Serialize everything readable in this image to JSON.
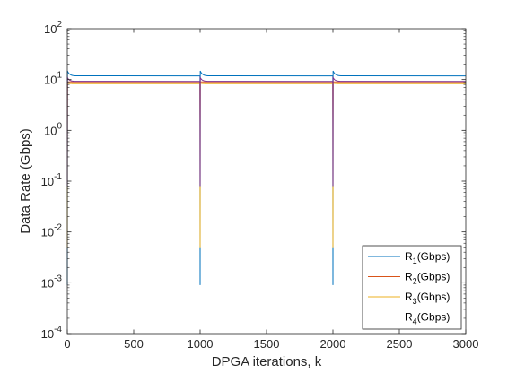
{
  "chart_data": {
    "type": "line",
    "title": "",
    "xlabel": "DPGA iterations, k",
    "ylabel": "Data Rate (Gbps)",
    "xlim": [
      0,
      3000
    ],
    "ylim": [
      0.0001,
      100
    ],
    "yscale": "log",
    "xticks": [
      0,
      500,
      1000,
      1500,
      2000,
      2500,
      3000
    ],
    "yticks": [
      {
        "value": 0.0001,
        "base": "10",
        "exp": "-4"
      },
      {
        "value": 0.001,
        "base": "10",
        "exp": "-3"
      },
      {
        "value": 0.01,
        "base": "10",
        "exp": "-2"
      },
      {
        "value": 0.1,
        "base": "10",
        "exp": "-1"
      },
      {
        "value": 1,
        "base": "10",
        "exp": "0"
      },
      {
        "value": 10,
        "base": "10",
        "exp": "1"
      },
      {
        "value": 100,
        "base": "10",
        "exp": "2"
      }
    ],
    "grid": false,
    "legend_position": "bottom-right",
    "restarts": [
      0,
      1000,
      2000
    ],
    "series": [
      {
        "name": "R_1(Gbps)",
        "label_base": "R",
        "label_sub": "1",
        "label_rest": "(Gbps)",
        "color": "#0072BD",
        "steady": 11.8,
        "peak": 15.0,
        "drop": 0.0009
      },
      {
        "name": "R_2(Gbps)",
        "label_base": "R",
        "label_sub": "2",
        "label_rest": "(Gbps)",
        "color": "#D95319",
        "steady": 9.0,
        "peak": 9.0,
        "drop": 1.3
      },
      {
        "name": "R_3(Gbps)",
        "label_base": "R",
        "label_sub": "3",
        "label_rest": "(Gbps)",
        "color": "#EDB120",
        "steady": 8.3,
        "peak": 8.5,
        "drop": 0.005
      },
      {
        "name": "R_4(Gbps)",
        "label_base": "R",
        "label_sub": "4",
        "label_rest": "(Gbps)",
        "color": "#7E2F8E",
        "steady": 9.2,
        "peak": 11.0,
        "drop": 0.08
      }
    ]
  }
}
